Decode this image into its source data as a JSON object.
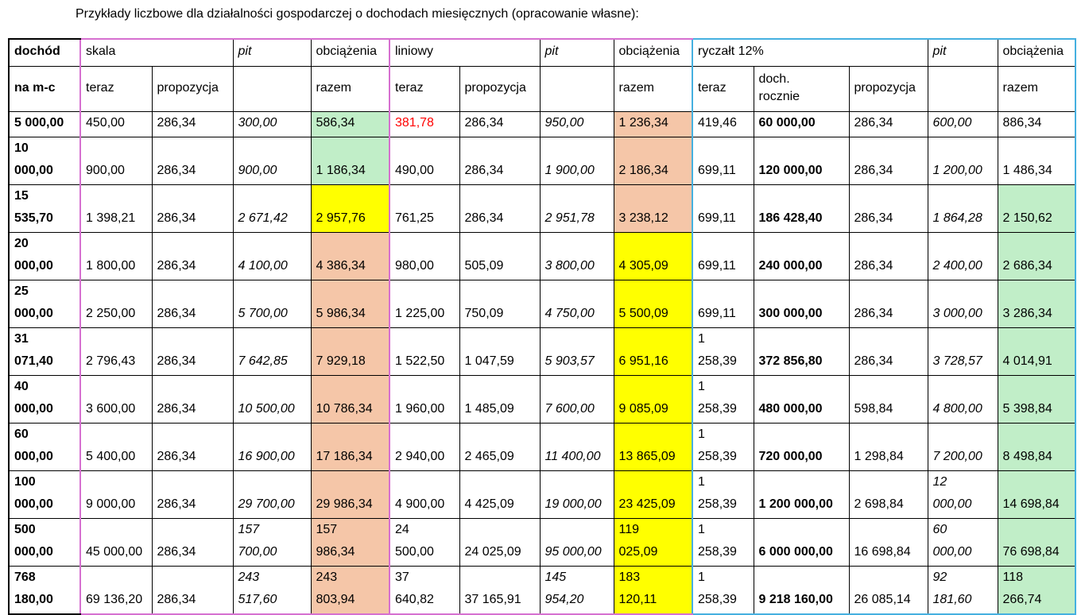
{
  "caption": "Przykłady liczbowe dla działalności gospodarczej o dochodach miesięcznych (opracowanie własne):",
  "colors": {
    "green": "#c1eec8",
    "peach": "#f5c6a8",
    "yellow": "#ffff00",
    "red": "#ff0000",
    "pink_border": "#d670d0",
    "blue_border": "#45b0e0"
  },
  "header1": {
    "dochod": "dochód",
    "skala": "skala",
    "pit1": "pit",
    "obc1": "obciążenia",
    "liniowy": "liniowy",
    "pit2": "pit",
    "obc2": "obciążenia",
    "ryczalt": "ryczałt 12%",
    "pit3": "pit",
    "obc3": "obciążenia"
  },
  "header2": {
    "na_mc": "na m-c",
    "teraz1": "teraz",
    "prop1": "propozycja",
    "razem1": "razem",
    "teraz2": "teraz",
    "prop2": "propozycja",
    "razem2": "razem",
    "teraz3": "teraz",
    "doch": "doch.\nrocznie",
    "prop3": "propozycja",
    "razem3": "razem"
  },
  "rows": [
    [
      "5 000,00",
      "450,00",
      "286,34",
      "300,00",
      "586,34",
      "381,78",
      "286,34",
      "950,00",
      "1 236,34",
      "419,46",
      "60 000,00",
      "286,34",
      "600,00",
      "886,34"
    ],
    [
      "10\n000,00",
      "900,00",
      "286,34",
      "900,00",
      "1 186,34",
      "490,00",
      "286,34",
      "1 900,00",
      "2 186,34",
      "699,11",
      "120 000,00",
      "286,34",
      "1 200,00",
      "1 486,34"
    ],
    [
      "15\n535,70",
      "1 398,21",
      "286,34",
      "2 671,42",
      "2 957,76",
      "761,25",
      "286,34",
      "2 951,78",
      "3 238,12",
      "699,11",
      "186 428,40",
      "286,34",
      "1 864,28",
      "2 150,62"
    ],
    [
      "20\n000,00",
      "1 800,00",
      "286,34",
      "4 100,00",
      "4 386,34",
      "980,00",
      "505,09",
      "3 800,00",
      "4 305,09",
      "699,11",
      "240 000,00",
      "286,34",
      "2 400,00",
      "2 686,34"
    ],
    [
      "25\n000,00",
      "2 250,00",
      "286,34",
      "5 700,00",
      "5 986,34",
      "1 225,00",
      "750,09",
      "4 750,00",
      "5 500,09",
      "699,11",
      "300 000,00",
      "286,34",
      "3 000,00",
      "3 286,34"
    ],
    [
      "31\n071,40",
      "2 796,43",
      "286,34",
      "7 642,85",
      "7 929,18",
      "1 522,50",
      "1 047,59",
      "5 903,57",
      "6 951,16",
      "1\n258,39",
      "372 856,80",
      "286,34",
      "3 728,57",
      "4 014,91"
    ],
    [
      "40\n000,00",
      "3 600,00",
      "286,34",
      "10 500,00",
      "10 786,34",
      "1 960,00",
      "1 485,09",
      "7 600,00",
      "9 085,09",
      "1\n258,39",
      "480 000,00",
      "598,84",
      "4 800,00",
      "5 398,84"
    ],
    [
      "60\n000,00",
      "5 400,00",
      "286,34",
      "16 900,00",
      "17 186,34",
      "2 940,00",
      "2 465,09",
      "11 400,00",
      "13 865,09",
      "1\n258,39",
      "720 000,00",
      "1 298,84",
      "7 200,00",
      "8 498,84"
    ],
    [
      "100\n000,00",
      "9 000,00",
      "286,34",
      "29 700,00",
      "29 986,34",
      "4 900,00",
      "4 425,09",
      "19 000,00",
      "23 425,09",
      "1\n258,39",
      "1 200 000,00",
      "2 698,84",
      "12\n000,00",
      "14 698,84"
    ],
    [
      "500\n000,00",
      "45 000,00",
      "286,34",
      "157\n700,00",
      "157\n986,34",
      "24\n500,00",
      "24 025,09",
      "95 000,00",
      "119\n025,09",
      "1\n258,39",
      "6 000 000,00",
      "16 698,84",
      "60\n000,00",
      "76 698,84"
    ],
    [
      "768\n180,00",
      "69 136,20",
      "286,34",
      "243\n517,60",
      "243\n803,94",
      "37\n640,82",
      "37 165,91",
      "145\n954,20",
      "183\n120,11",
      "1\n258,39",
      "9 218 160,00",
      "26 085,14",
      "92\n181,60",
      "118\n266,74"
    ]
  ],
  "fills": {
    "skala_razem": [
      "green",
      "green",
      "yellow",
      "peach",
      "peach",
      "peach",
      "peach",
      "peach",
      "peach",
      "peach",
      "peach"
    ],
    "liniowy_razem": [
      "peach",
      "peach",
      "peach",
      "yellow",
      "yellow",
      "yellow",
      "yellow",
      "yellow",
      "yellow",
      "yellow",
      "yellow"
    ],
    "ryczalt_razem": [
      "none",
      "none",
      "green",
      "green",
      "green",
      "green",
      "green",
      "green",
      "green",
      "green",
      "green"
    ]
  },
  "red_cells": [
    [
      0,
      5
    ]
  ]
}
